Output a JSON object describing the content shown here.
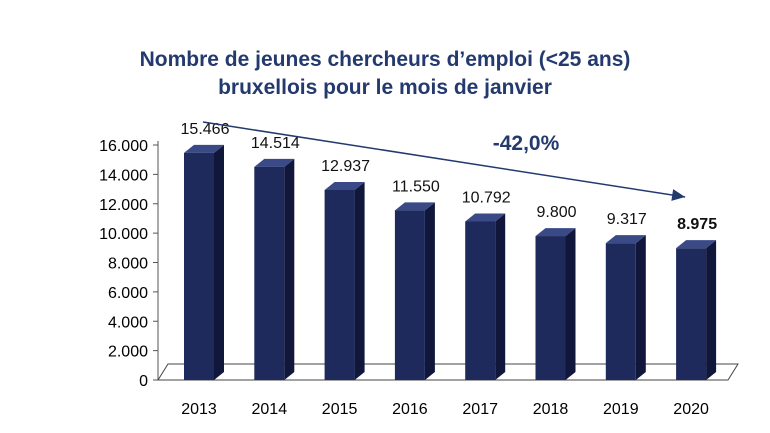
{
  "chart_data": {
    "type": "bar",
    "title_line1": "Nombre de jeunes chercheurs d’emploi (<25 ans)",
    "title_line2": "bruxellois pour le mois de janvier",
    "categories": [
      "2013",
      "2014",
      "2015",
      "2016",
      "2017",
      "2018",
      "2019",
      "2020"
    ],
    "values": [
      15466,
      14514,
      12937,
      11550,
      10792,
      9800,
      9317,
      8975
    ],
    "value_labels": [
      "15.466",
      "14.514",
      "12.937",
      "11.550",
      "10.792",
      "9.800",
      "9.317",
      "8.975"
    ],
    "highlight_last_label_bold": true,
    "yticks": [
      0,
      2000,
      4000,
      6000,
      8000,
      10000,
      12000,
      14000,
      16000
    ],
    "ytick_labels": [
      "0",
      "2.000",
      "4.000",
      "6.000",
      "8.000",
      "10.000",
      "12.000",
      "14.000",
      "16.000"
    ],
    "ylim": [
      0,
      16000
    ],
    "xlabel": "",
    "ylabel": "",
    "grid": false,
    "bar_style": "3d",
    "annotation": {
      "text": "-42,0%",
      "arrow": "from 2013 down to 2020"
    },
    "colors": {
      "bar_front": "#1f2a5c",
      "bar_side": "#10173a",
      "bar_top": "#3a4a86",
      "floor": "#ffffff",
      "floor_edge": "#444444",
      "arrow": "#243a6e",
      "title": "#243a6e"
    }
  }
}
